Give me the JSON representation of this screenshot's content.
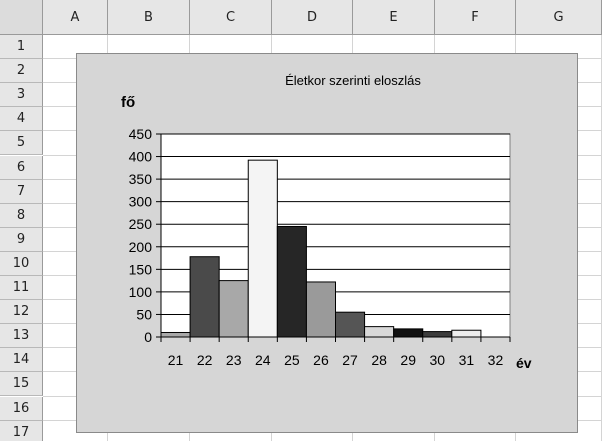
{
  "spreadsheet": {
    "columns": [
      "A",
      "B",
      "C",
      "D",
      "E",
      "F",
      "G"
    ],
    "rows": [
      "1",
      "2",
      "3",
      "4",
      "5",
      "6",
      "7",
      "8",
      "9",
      "10",
      "11",
      "12",
      "13",
      "14",
      "15",
      "16",
      "17"
    ]
  },
  "chart_data": {
    "type": "bar",
    "title": "Életkor szerinti eloszlás",
    "ylabel": "fő",
    "xlabel": "év",
    "categories": [
      "21",
      "22",
      "23",
      "24",
      "25",
      "26",
      "27",
      "28",
      "29",
      "30",
      "31",
      "32"
    ],
    "values": [
      10,
      178,
      125,
      392,
      245,
      122,
      55,
      23,
      18,
      12,
      15,
      0
    ],
    "ylim": [
      0,
      450
    ],
    "yticks": [
      "0",
      "50",
      "100",
      "150",
      "200",
      "250",
      "300",
      "350",
      "400",
      "450"
    ],
    "grid": true,
    "bar_colors": [
      "#a8a8a8",
      "#4a4a4a",
      "#a8a8a8",
      "#f4f4f4",
      "#262626",
      "#9a9a9a",
      "#555555",
      "#d8d8d8",
      "#111111",
      "#3c3c3c",
      "#ededed",
      "#ffffff"
    ]
  }
}
